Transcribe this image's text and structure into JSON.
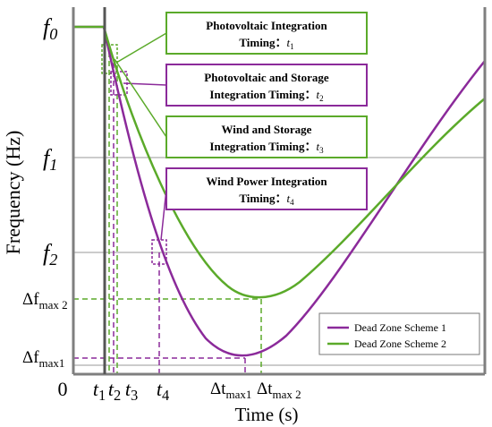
{
  "chart_data": {
    "type": "line",
    "xlabel": "Time",
    "xunit": "(s)",
    "ylabel": "Frequency (Hz)",
    "y_ticks": [
      {
        "label": "f",
        "sub": "0"
      },
      {
        "label": "f",
        "sub": "1"
      },
      {
        "label": "f",
        "sub": "2"
      }
    ],
    "x_ticks": [
      {
        "label": "0",
        "sub": ""
      },
      {
        "label": "t",
        "sub": "1"
      },
      {
        "label": "t",
        "sub": "2"
      },
      {
        "label": "t",
        "sub": "3"
      },
      {
        "label": "t",
        "sub": "4"
      }
    ],
    "delta_labels": {
      "df_max2": {
        "main": "Δf",
        "sub": "max 2"
      },
      "df_max1": {
        "main": "Δf",
        "sub": "max1"
      },
      "dt_max1": {
        "main": "Δt",
        "sub": "max1"
      },
      "dt_max2": {
        "main": "Δt",
        "sub": "max 2"
      }
    },
    "series": [
      {
        "name": "Dead Zone Scheme 1",
        "color": "#8B2A9A"
      },
      {
        "name": "Dead Zone Scheme 2",
        "color": "#5BAA2A"
      }
    ],
    "annotations": [
      {
        "line1": "Photovoltaic Integration",
        "line2": "Timing：",
        "var": "t",
        "sub": "1",
        "color": "#5BAA2A"
      },
      {
        "line1": "Photovoltaic and Storage",
        "line2": "Integration Timing：",
        "var": "t",
        "sub": "2",
        "color": "#8B2A9A"
      },
      {
        "line1": "Wind and Storage",
        "line2": "Integration Timing：",
        "var": "t",
        "sub": "3",
        "color": "#5BAA2A"
      },
      {
        "line1": "Wind Power Integration",
        "line2": "Timing：",
        "var": "t",
        "sub": "4",
        "color": "#8B2A9A"
      }
    ],
    "grid": "horizontal reference lines at f1, f2 and bottom",
    "legend_position": "bottom-right"
  }
}
